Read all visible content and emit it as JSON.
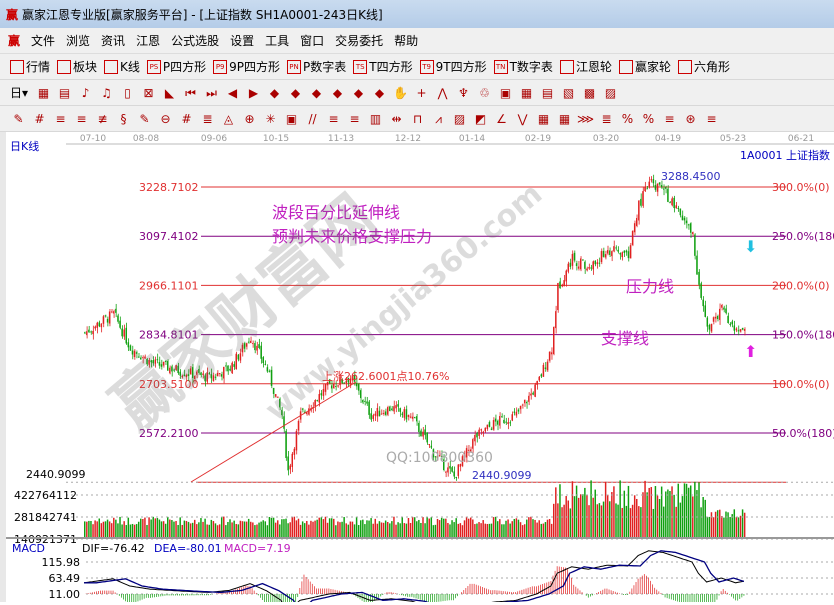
{
  "window": {
    "title": "赢家江恩专业版[赢家服务平台] - [上证指数  SH1A0001-243日K线]",
    "logo": "赢"
  },
  "menu": [
    "文件",
    "浏览",
    "资讯",
    "江恩",
    "公式选股",
    "设置",
    "工具",
    "窗口",
    "交易委托",
    "帮助"
  ],
  "toolbar1": [
    {
      "icon": "grid-icon",
      "label": "行情"
    },
    {
      "icon": "blocks-icon",
      "label": "板块"
    },
    {
      "icon": "kline-icon",
      "label": "K线"
    },
    {
      "icon": "PS",
      "label": "P四方形"
    },
    {
      "icon": "P9",
      "label": "9P四方形"
    },
    {
      "icon": "PN",
      "label": "P数字表"
    },
    {
      "icon": "TS",
      "label": "T四方形"
    },
    {
      "icon": "T9",
      "label": "9T四方形"
    },
    {
      "icon": "TN",
      "label": "T数字表"
    },
    {
      "icon": "wheel-icon",
      "label": "江恩轮"
    },
    {
      "icon": "win-wheel-icon",
      "label": "赢家轮"
    },
    {
      "icon": "hexagon-icon",
      "label": "六角形"
    }
  ],
  "toolbar2": {
    "period": "日"
  },
  "chart": {
    "period_label": "日K线",
    "symbol": "1A0001  上证指数",
    "dates": [
      "07-10",
      "08-08",
      "09-06",
      "10-15",
      "11-13",
      "12-12",
      "01-14",
      "02-19",
      "03-20",
      "04-19",
      "05-23",
      "06-21"
    ],
    "levels": [
      {
        "price": "3228.7102",
        "pct": "300.0%(0)",
        "color": "#e03030"
      },
      {
        "price": "3097.4102",
        "pct": "250.0%(180)",
        "color": "#800080"
      },
      {
        "price": "2966.1101",
        "pct": "200.0%(0)",
        "color": "#e03030"
      },
      {
        "price": "2834.8101",
        "pct": "150.0%(180)",
        "color": "#800080"
      },
      {
        "price": "2703.5100",
        "pct": "100.0%(0)",
        "color": "#e03030"
      },
      {
        "price": "2572.2100",
        "pct": "50.0%(180)",
        "color": "#800080"
      }
    ],
    "low_label": "2440.9099",
    "low_marker": "2440.9099",
    "high_marker": "3288.4500",
    "rise_label": "上涨262.6001点10.76%",
    "annotation1": "波段百分比延伸线",
    "annotation2": "预判未来价格支撑压力",
    "pressure": "压力线",
    "support": "支撑线",
    "watermark": "赢家财富网",
    "watermark_url": "www.yingjia360.com",
    "qq": "QQ:100800360",
    "price_path": [
      [
        0,
        2840
      ],
      [
        14,
        2890
      ],
      [
        22,
        2800
      ],
      [
        32,
        2760
      ],
      [
        48,
        2735
      ],
      [
        60,
        2720
      ],
      [
        70,
        2745
      ],
      [
        80,
        2830
      ],
      [
        88,
        2740
      ],
      [
        95,
        2620
      ],
      [
        98,
        2470
      ],
      [
        104,
        2620
      ],
      [
        118,
        2700
      ],
      [
        128,
        2720
      ],
      [
        138,
        2620
      ],
      [
        148,
        2640
      ],
      [
        158,
        2610
      ],
      [
        168,
        2520
      ],
      [
        178,
        2455
      ],
      [
        188,
        2560
      ],
      [
        198,
        2600
      ],
      [
        208,
        2620
      ],
      [
        218,
        2700
      ],
      [
        225,
        2800
      ],
      [
        228,
        2960
      ],
      [
        235,
        3040
      ],
      [
        243,
        3010
      ],
      [
        252,
        3060
      ],
      [
        262,
        3050
      ],
      [
        267,
        3180
      ],
      [
        272,
        3240
      ],
      [
        279,
        3220
      ],
      [
        286,
        3160
      ],
      [
        293,
        3100
      ],
      [
        296,
        2960
      ],
      [
        300,
        2850
      ],
      [
        307,
        2900
      ],
      [
        314,
        2840
      ],
      [
        318,
        2860
      ]
    ]
  },
  "volume": {
    "ticks": [
      "422764112",
      "281842741",
      "140921371"
    ]
  },
  "macd": {
    "name": "MACD",
    "dif": "DIF=-76.42",
    "dea": "DEA=-80.01",
    "macd": "MACD=7.19",
    "ticks": [
      "115.98",
      "63.49",
      "11.00"
    ]
  },
  "colors": {
    "up": "#e02020",
    "down": "#10a010",
    "accent": "#c00000"
  }
}
